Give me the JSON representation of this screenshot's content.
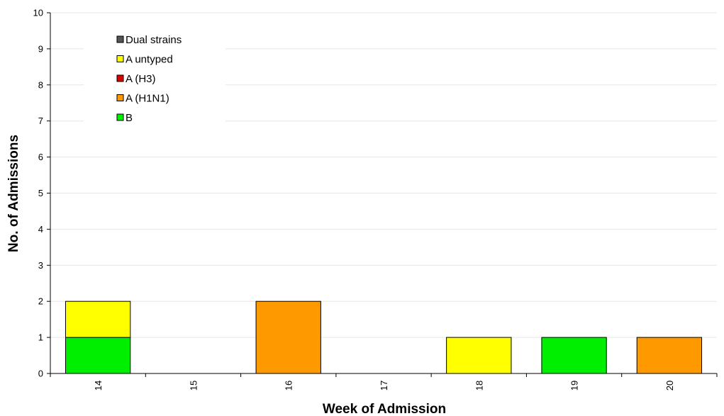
{
  "chart_data": {
    "type": "bar",
    "stacked": true,
    "categories": [
      "14",
      "15",
      "16",
      "17",
      "18",
      "19",
      "20"
    ],
    "series": [
      {
        "name": "B",
        "color": "#00ee00",
        "values": [
          1,
          0,
          0,
          0,
          0,
          1,
          0
        ]
      },
      {
        "name": "A (H1N1)",
        "color": "#ff9900",
        "values": [
          0,
          0,
          2,
          0,
          0,
          0,
          1
        ]
      },
      {
        "name": "A (H3)",
        "color": "#dd0000",
        "values": [
          0,
          0,
          0,
          0,
          0,
          0,
          0
        ]
      },
      {
        "name": "A untyped",
        "color": "#ffff00",
        "values": [
          1,
          0,
          0,
          0,
          1,
          0,
          0
        ]
      },
      {
        "name": "Dual strains",
        "color": "#555555",
        "values": [
          0,
          0,
          0,
          0,
          0,
          0,
          0
        ]
      }
    ],
    "legend_order": [
      "Dual strains",
      "A untyped",
      "A (H3)",
      "A (H1N1)",
      "B"
    ],
    "xlabel": "Week of Admission",
    "ylabel": "No. of Admissions",
    "ylim": [
      0,
      10
    ],
    "yticks": [
      "0",
      "1",
      "2",
      "3",
      "4",
      "5",
      "6",
      "7",
      "8",
      "9",
      "10"
    ],
    "grid": true,
    "legend_position": "top-left"
  }
}
